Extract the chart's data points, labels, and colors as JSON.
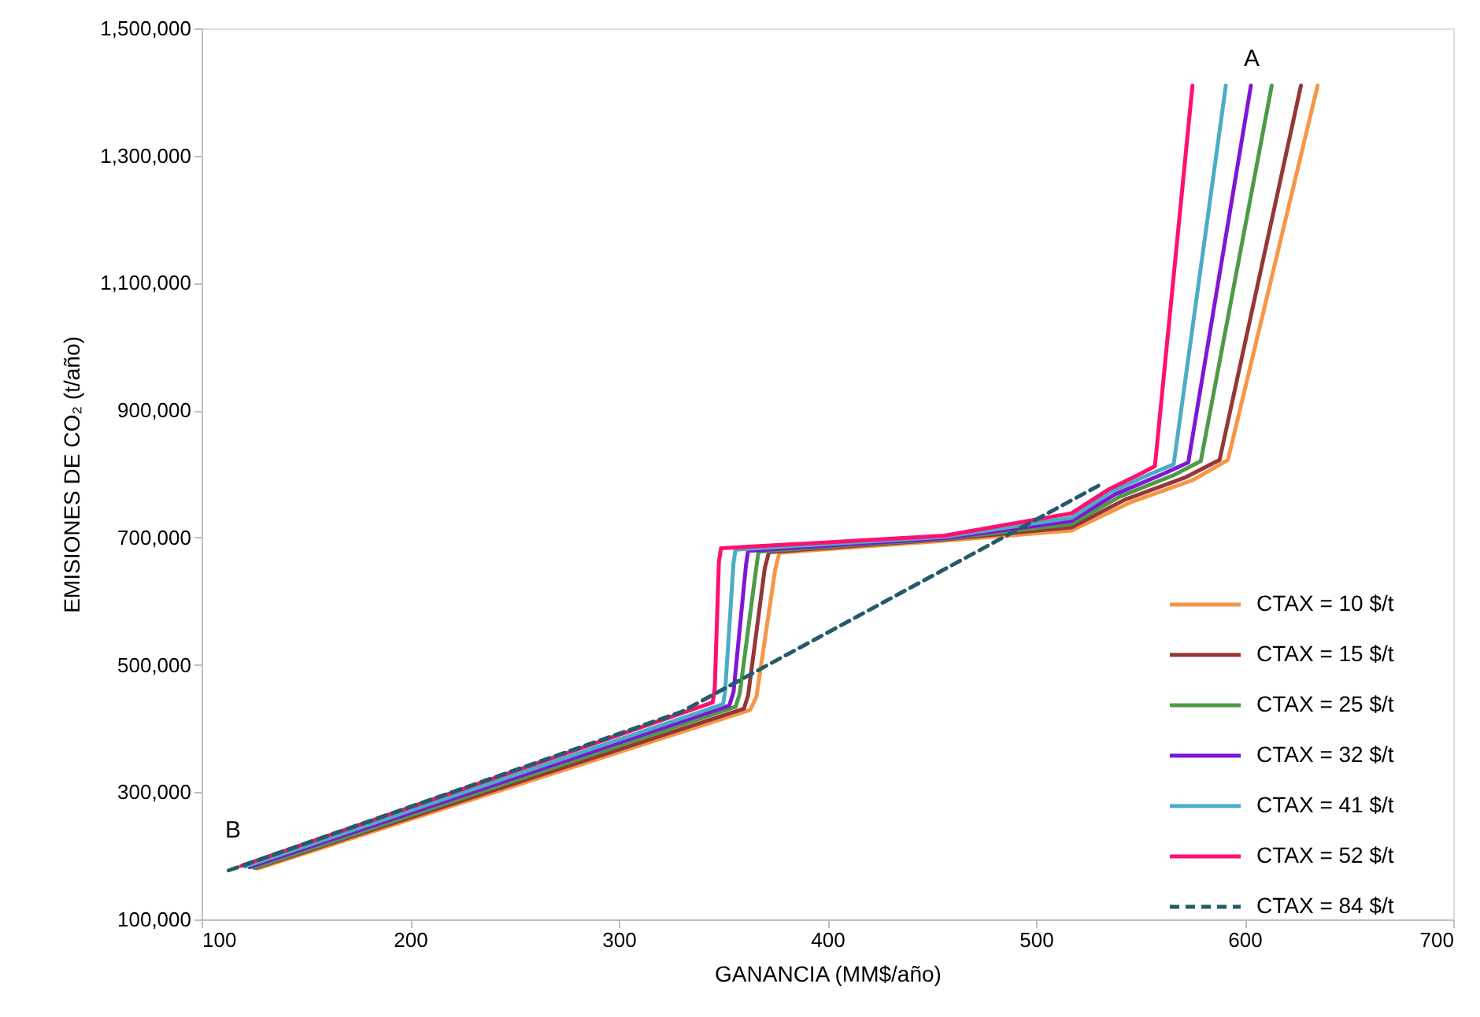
{
  "chart_data": {
    "type": "line",
    "xlabel": "GANANCIA (MM$/año)",
    "ylabel": "EMISIONES DE CO₂ (t/año)",
    "xlim": [
      100,
      700
    ],
    "xticks": [
      100,
      200,
      300,
      400,
      500,
      600,
      700
    ],
    "ylim": [
      100000,
      1500000
    ],
    "yticks": [
      {
        "value": 100000,
        "label": "100,000"
      },
      {
        "value": 300000,
        "label": "300,000"
      },
      {
        "value": 500000,
        "label": "500,000"
      },
      {
        "value": 700000,
        "label": "700,000"
      },
      {
        "value": 900000,
        "label": "900,000"
      },
      {
        "value": 1100000,
        "label": "1,100,000"
      },
      {
        "value": 1300000,
        "label": "1,300,000"
      },
      {
        "value": 1500000,
        "label": "1,500,000"
      }
    ],
    "grid": false,
    "legend": "bottom right",
    "marker": "none",
    "annotations": [
      "A",
      "B"
    ],
    "series": [
      {
        "name": "CTAX = 10 $/t",
        "color": "#f79646",
        "line_style": "solid",
        "x": [
          127,
          363,
          366,
          375,
          377,
          456,
          517,
          545,
          575,
          592,
          635
        ],
        "values": [
          180000,
          429000,
          450000,
          650000,
          676000,
          695000,
          711000,
          755000,
          790000,
          822000,
          1410000
        ]
      },
      {
        "name": "CTAX = 15 $/t",
        "color": "#953735",
        "line_style": "solid",
        "x": [
          126,
          360,
          362,
          370,
          372,
          456,
          517,
          543,
          572,
          588,
          627
        ],
        "values": [
          181000,
          431000,
          452000,
          652000,
          677000,
          697000,
          716000,
          760000,
          795000,
          822000,
          1410000
        ]
      },
      {
        "name": "CTAX = 25 $/t",
        "color": "#4e9a47",
        "line_style": "solid",
        "x": [
          125,
          356,
          358,
          366,
          367,
          456,
          517,
          540,
          566,
          579,
          613
        ],
        "values": [
          181000,
          434000,
          455000,
          655000,
          678000,
          698000,
          721000,
          764000,
          798000,
          820000,
          1410000
        ]
      },
      {
        "name": "CTAX = 32 $/t",
        "color": "#7f16d6",
        "line_style": "solid",
        "x": [
          123,
          353,
          355,
          361,
          362,
          456,
          517,
          538,
          561,
          573,
          603
        ],
        "values": [
          182000,
          436000,
          457000,
          657000,
          679000,
          699000,
          726000,
          768000,
          800000,
          818000,
          1410000
        ]
      },
      {
        "name": "CTAX = 41 $/t",
        "color": "#4bacc6",
        "line_style": "solid",
        "x": [
          121,
          350,
          351,
          355,
          356,
          456,
          517,
          536,
          555,
          566,
          591
        ],
        "values": [
          183000,
          438000,
          459000,
          660000,
          681000,
          701000,
          731000,
          772000,
          800000,
          815000,
          1410000
        ]
      },
      {
        "name": "CTAX = 52 $/t",
        "color": "#ff1070",
        "line_style": "solid",
        "x": [
          119,
          345,
          346,
          348,
          349,
          456,
          517,
          535,
          550,
          557,
          575
        ],
        "values": [
          184000,
          441000,
          462000,
          662000,
          683000,
          703000,
          738000,
          776000,
          800000,
          812000,
          1410000
        ]
      },
      {
        "name": "CTAX = 84 $/t",
        "color": "#245b6a",
        "line_style": "dashed",
        "x": [
          113,
          330,
          532
        ],
        "values": [
          177000,
          426000,
          785000
        ]
      }
    ]
  }
}
